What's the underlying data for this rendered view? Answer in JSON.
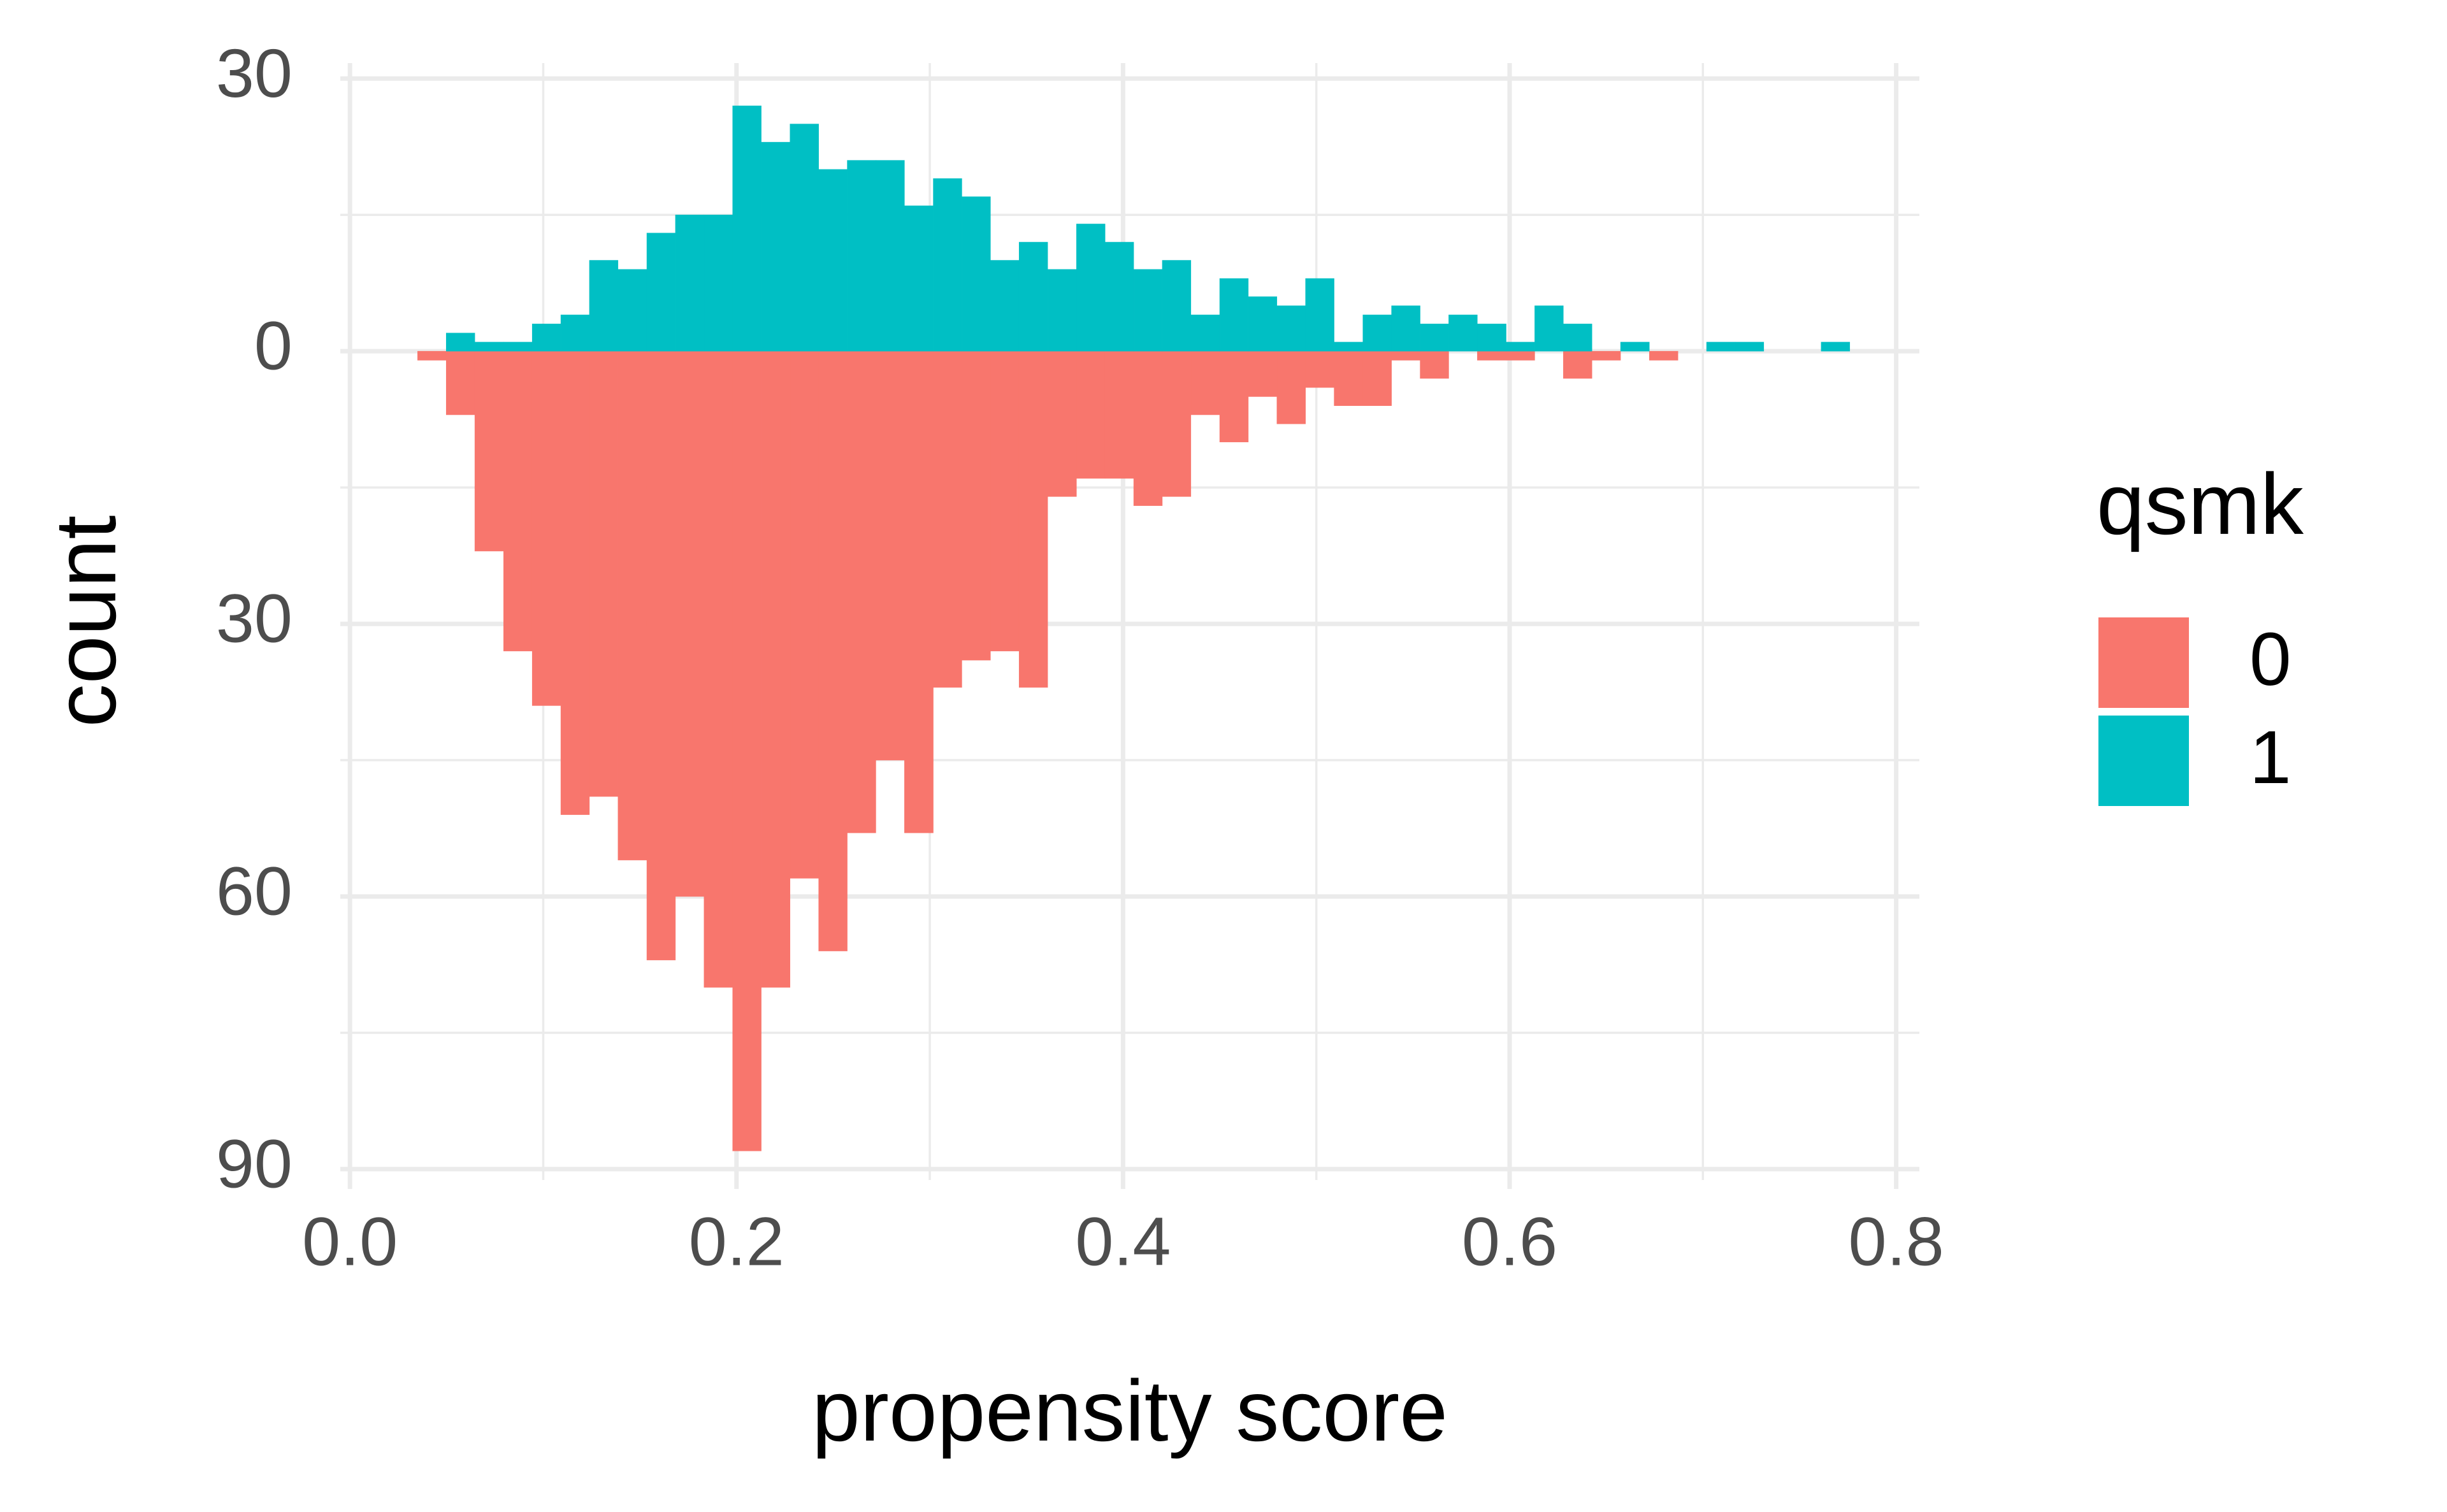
{
  "chart_data": {
    "type": "histogram",
    "x_label": "propensity score",
    "y_label": "count",
    "legend_title": "qsmk",
    "bins": [
      0.035,
      0.0498,
      0.0646,
      0.0795,
      0.0943,
      0.1091,
      0.1239,
      0.1387,
      0.1536,
      0.1684,
      0.1832,
      0.198,
      0.2128,
      0.2277,
      0.2425,
      0.2573,
      0.2721,
      0.2869,
      0.3018,
      0.3166,
      0.3314,
      0.3462,
      0.361,
      0.3759,
      0.3907,
      0.4055,
      0.4203,
      0.4351,
      0.45,
      0.4648,
      0.4796,
      0.4944,
      0.5092,
      0.5241,
      0.5389,
      0.5537,
      0.5685,
      0.5833,
      0.5982,
      0.613,
      0.6278,
      0.6426,
      0.6574,
      0.6723,
      0.6871,
      0.7019,
      0.7167,
      0.7315,
      0.7464,
      0.7612,
      0.776
    ],
    "series": [
      {
        "name": "0",
        "color": "#F8766D",
        "values": [
          -1,
          -7,
          -22,
          -33,
          -39,
          -51,
          -49,
          -56,
          -67,
          -60,
          -70,
          -88,
          -70,
          -58,
          -66,
          -53,
          -45,
          -53,
          -37,
          -34,
          -33,
          -37,
          -16,
          -14,
          -14,
          -17,
          -16,
          -7,
          -10,
          -5,
          -8,
          -4,
          -6,
          -6,
          -1,
          -3,
          0,
          -1,
          -1,
          0,
          -3,
          -1,
          0,
          -1,
          0,
          0,
          0,
          0,
          0,
          0
        ]
      },
      {
        "name": "1",
        "color": "#00BFC4",
        "values": [
          0,
          2,
          1,
          1,
          3,
          4,
          10,
          9,
          13,
          15,
          15,
          27,
          23,
          25,
          20,
          21,
          21,
          16,
          19,
          17,
          10,
          12,
          9,
          14,
          12,
          9,
          10,
          4,
          8,
          6,
          5,
          8,
          1,
          4,
          5,
          3,
          4,
          3,
          1,
          5,
          3,
          0,
          1,
          0,
          0,
          1,
          1,
          0,
          0,
          1
        ]
      }
    ],
    "xlim": [
      -0.005,
      0.812
    ],
    "ylim": [
      -91.2,
      31.7
    ],
    "xticks": [
      {
        "value": 0,
        "label": "0.0"
      },
      0.2,
      0.4,
      0.6,
      0.8
    ],
    "x_minor_ticks": [
      0.1,
      0.3,
      0.5,
      0.7
    ],
    "yticks": [
      30,
      0,
      {
        "value": -30,
        "label": "30"
      },
      {
        "value": -60,
        "label": "60"
      },
      {
        "value": -90,
        "label": "90"
      }
    ],
    "y_minor_ticks": [
      15,
      -15,
      -45,
      -75
    ],
    "grid": true
  }
}
